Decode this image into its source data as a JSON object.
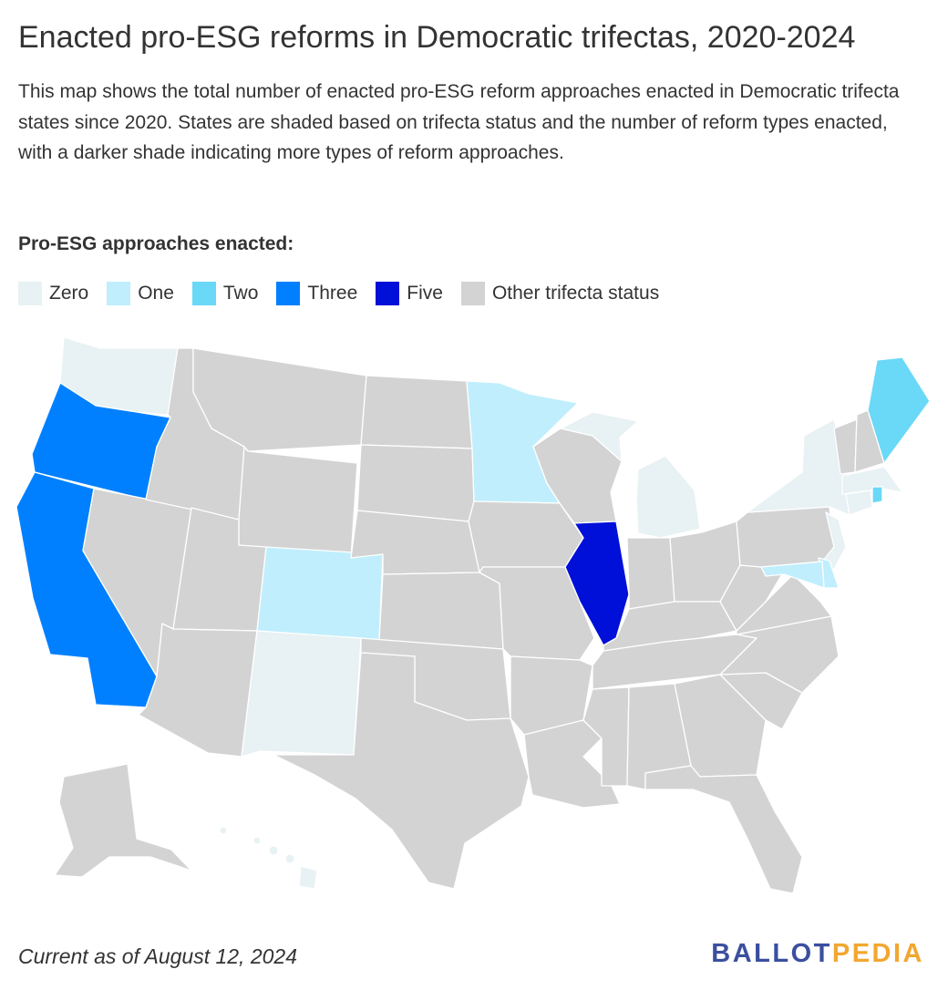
{
  "title": "Enacted pro-ESG reforms in Democratic trifectas, 2020-2024",
  "subtitle": "This map shows the total number of enacted pro-ESG reform approaches enacted in Democratic trifecta states since 2020. States are shaded based on trifecta status and the number of reform types enacted, with a darker shade indicating more types of reform approaches.",
  "legend": {
    "title": "Pro-ESG approaches enacted:",
    "items": [
      {
        "label": "Zero",
        "color": "#e8f1f3"
      },
      {
        "label": "One",
        "color": "#c0eefd"
      },
      {
        "label": "Two",
        "color": "#6ad8f7"
      },
      {
        "label": "Three",
        "color": "#0080ff"
      },
      {
        "label": "Five",
        "color": "#0010d8"
      },
      {
        "label": "Other trifecta status",
        "color": "#d3d3d3"
      }
    ]
  },
  "map": {
    "categories": {
      "zero": "#e8f1f3",
      "one": "#c0eefd",
      "two": "#6ad8f7",
      "three": "#0080ff",
      "five": "#0010d8",
      "other": "#d3d3d3"
    },
    "states": [
      {
        "name": "Washington",
        "category": "zero"
      },
      {
        "name": "Oregon",
        "category": "three"
      },
      {
        "name": "California",
        "category": "three"
      },
      {
        "name": "Nevada",
        "category": "other"
      },
      {
        "name": "Idaho",
        "category": "other"
      },
      {
        "name": "Montana",
        "category": "other"
      },
      {
        "name": "Wyoming",
        "category": "other"
      },
      {
        "name": "Utah",
        "category": "other"
      },
      {
        "name": "Arizona",
        "category": "other"
      },
      {
        "name": "Colorado",
        "category": "one"
      },
      {
        "name": "New Mexico",
        "category": "zero"
      },
      {
        "name": "North Dakota",
        "category": "other"
      },
      {
        "name": "South Dakota",
        "category": "other"
      },
      {
        "name": "Nebraska",
        "category": "other"
      },
      {
        "name": "Kansas",
        "category": "other"
      },
      {
        "name": "Oklahoma",
        "category": "other"
      },
      {
        "name": "Texas",
        "category": "other"
      },
      {
        "name": "Minnesota",
        "category": "one"
      },
      {
        "name": "Iowa",
        "category": "other"
      },
      {
        "name": "Missouri",
        "category": "other"
      },
      {
        "name": "Arkansas",
        "category": "other"
      },
      {
        "name": "Louisiana",
        "category": "other"
      },
      {
        "name": "Wisconsin",
        "category": "other"
      },
      {
        "name": "Illinois",
        "category": "five"
      },
      {
        "name": "Michigan",
        "category": "zero"
      },
      {
        "name": "Indiana",
        "category": "other"
      },
      {
        "name": "Ohio",
        "category": "other"
      },
      {
        "name": "Kentucky",
        "category": "other"
      },
      {
        "name": "Tennessee",
        "category": "other"
      },
      {
        "name": "Mississippi",
        "category": "other"
      },
      {
        "name": "Alabama",
        "category": "other"
      },
      {
        "name": "Georgia",
        "category": "other"
      },
      {
        "name": "Florida",
        "category": "other"
      },
      {
        "name": "South Carolina",
        "category": "other"
      },
      {
        "name": "North Carolina",
        "category": "other"
      },
      {
        "name": "Virginia",
        "category": "other"
      },
      {
        "name": "West Virginia",
        "category": "other"
      },
      {
        "name": "Pennsylvania",
        "category": "other"
      },
      {
        "name": "New York",
        "category": "zero"
      },
      {
        "name": "Vermont",
        "category": "other"
      },
      {
        "name": "New Hampshire",
        "category": "other"
      },
      {
        "name": "Maine",
        "category": "two"
      },
      {
        "name": "Massachusetts",
        "category": "zero"
      },
      {
        "name": "Rhode Island",
        "category": "two"
      },
      {
        "name": "Connecticut",
        "category": "zero"
      },
      {
        "name": "New Jersey",
        "category": "zero"
      },
      {
        "name": "Delaware",
        "category": "one"
      },
      {
        "name": "Maryland",
        "category": "one"
      },
      {
        "name": "Alaska",
        "category": "other"
      },
      {
        "name": "Hawaii",
        "category": "zero"
      }
    ]
  },
  "footer": "Current as of August 12, 2024",
  "logo": {
    "part1": "BALLOT",
    "part2": "PEDIA"
  }
}
